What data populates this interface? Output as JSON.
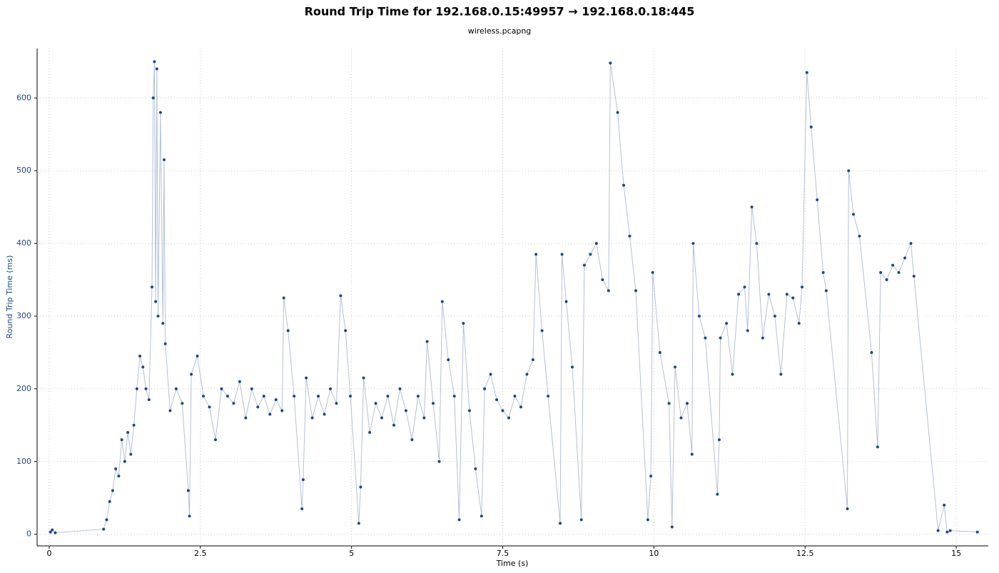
{
  "chart_data": {
    "type": "line",
    "title": "Round Trip Time for 192.168.0.15:49957 → 192.168.0.18:445",
    "subtitle": "wireless.pcapng",
    "x_label": "Time (s)",
    "y_label": "Round Trip Time (ms)",
    "color": "#1f4683",
    "line_color": "#b4c0d8",
    "grid": true,
    "xlim": [
      -0.2,
      15.53
    ],
    "ylim": [
      -16,
      668
    ],
    "xticks": [
      0,
      2.5,
      5,
      7.5,
      10,
      12.5,
      15
    ],
    "yticks": [
      0,
      100,
      200,
      300,
      400,
      500,
      600
    ],
    "x": [
      0.02,
      0.05,
      0.1,
      0.9,
      0.95,
      1.0,
      1.05,
      1.1,
      1.15,
      1.2,
      1.25,
      1.3,
      1.35,
      1.4,
      1.45,
      1.5,
      1.55,
      1.6,
      1.65,
      1.7,
      1.72,
      1.74,
      1.76,
      1.78,
      1.8,
      1.84,
      1.88,
      1.9,
      1.92,
      2.0,
      2.1,
      2.2,
      2.3,
      2.32,
      2.35,
      2.45,
      2.55,
      2.65,
      2.75,
      2.85,
      2.95,
      3.05,
      3.15,
      3.25,
      3.35,
      3.45,
      3.55,
      3.65,
      3.75,
      3.85,
      3.88,
      3.95,
      4.05,
      4.18,
      4.2,
      4.25,
      4.35,
      4.45,
      4.55,
      4.65,
      4.75,
      4.82,
      4.9,
      4.98,
      5.12,
      5.15,
      5.2,
      5.3,
      5.4,
      5.5,
      5.6,
      5.7,
      5.8,
      5.9,
      6.0,
      6.1,
      6.2,
      6.25,
      6.35,
      6.45,
      6.5,
      6.6,
      6.7,
      6.78,
      6.85,
      6.95,
      7.05,
      7.15,
      7.2,
      7.3,
      7.4,
      7.5,
      7.6,
      7.7,
      7.8,
      7.9,
      8.0,
      8.05,
      8.15,
      8.25,
      8.45,
      8.48,
      8.55,
      8.65,
      8.8,
      8.85,
      8.95,
      9.05,
      9.15,
      9.25,
      9.28,
      9.4,
      9.5,
      9.6,
      9.7,
      9.9,
      9.95,
      9.98,
      10.1,
      10.25,
      10.3,
      10.35,
      10.45,
      10.55,
      10.63,
      10.65,
      10.75,
      10.85,
      11.05,
      11.08,
      11.1,
      11.2,
      11.3,
      11.4,
      11.5,
      11.55,
      11.62,
      11.7,
      11.8,
      11.9,
      12.0,
      12.1,
      12.2,
      12.3,
      12.4,
      12.45,
      12.53,
      12.6,
      12.7,
      12.8,
      12.85,
      13.2,
      13.22,
      13.3,
      13.4,
      13.6,
      13.7,
      13.75,
      13.85,
      13.95,
      14.05,
      14.15,
      14.25,
      14.3,
      14.7,
      14.8,
      14.85,
      14.9,
      15.35
    ],
    "values": [
      3,
      6,
      2,
      7,
      20,
      45,
      60,
      90,
      80,
      130,
      100,
      140,
      110,
      150,
      200,
      245,
      230,
      200,
      185,
      340,
      600,
      650,
      320,
      640,
      300,
      580,
      290,
      515,
      262,
      170,
      200,
      180,
      60,
      25,
      220,
      245,
      190,
      175,
      130,
      200,
      190,
      180,
      210,
      160,
      200,
      175,
      190,
      165,
      185,
      170,
      325,
      280,
      190,
      35,
      75,
      215,
      160,
      190,
      165,
      200,
      180,
      328,
      280,
      190,
      15,
      65,
      215,
      140,
      180,
      160,
      190,
      150,
      200,
      170,
      130,
      190,
      160,
      265,
      180,
      100,
      320,
      240,
      190,
      20,
      290,
      170,
      90,
      25,
      200,
      220,
      185,
      170,
      160,
      190,
      175,
      220,
      240,
      385,
      280,
      190,
      15,
      385,
      320,
      230,
      20,
      370,
      385,
      400,
      350,
      335,
      648,
      580,
      480,
      410,
      335,
      20,
      80,
      360,
      250,
      180,
      10,
      230,
      160,
      180,
      110,
      400,
      300,
      270,
      55,
      130,
      270,
      290,
      220,
      330,
      340,
      280,
      450,
      400,
      270,
      330,
      300,
      220,
      330,
      325,
      290,
      340,
      635,
      560,
      460,
      360,
      335,
      35,
      500,
      440,
      410,
      250,
      120,
      360,
      350,
      370,
      360,
      380,
      400,
      355,
      5,
      40,
      3,
      5,
      3
    ]
  }
}
